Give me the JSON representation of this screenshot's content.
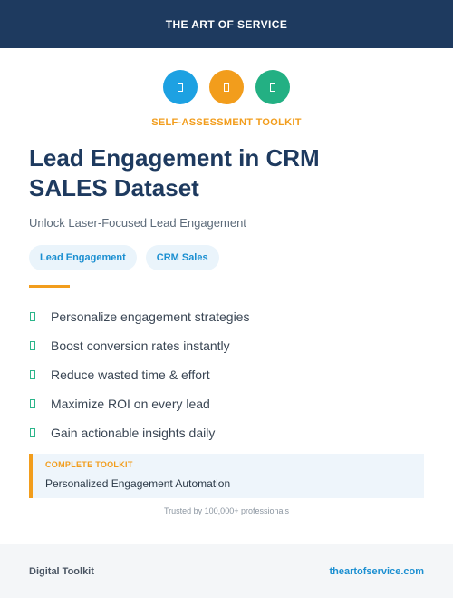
{
  "header": {
    "brand": "THE ART OF SERVICE",
    "bg_color": "#1e3a5f"
  },
  "icons": [
    {
      "name": "feature-icon-1",
      "color": "#1da1e2"
    },
    {
      "name": "feature-icon-2",
      "color": "#f29d1c"
    },
    {
      "name": "feature-icon-3",
      "color": "#23b083"
    }
  ],
  "kicker": "SELF-ASSESSMENT TOOLKIT",
  "title_line1": "Lead Engagement in CRM",
  "title_line2": "SALES Dataset",
  "subtitle": "Unlock Laser-Focused Lead Engagement",
  "tags": [
    "Lead Engagement",
    "CRM Sales"
  ],
  "benefits": [
    "Personalize engagement strategies",
    "Boost conversion rates instantly",
    "Reduce wasted time & effort",
    "Maximize ROI on every lead",
    "Gain actionable insights daily"
  ],
  "callout": {
    "label": "COMPLETE TOOLKIT",
    "text": "Personalized Engagement Automation"
  },
  "trust_line": "Trusted by 100,000+ professionals",
  "footer": {
    "left": "Digital Toolkit",
    "right": "theartofservice.com"
  },
  "accent_color": "#f29d1c",
  "check_color": "#2bb58a"
}
